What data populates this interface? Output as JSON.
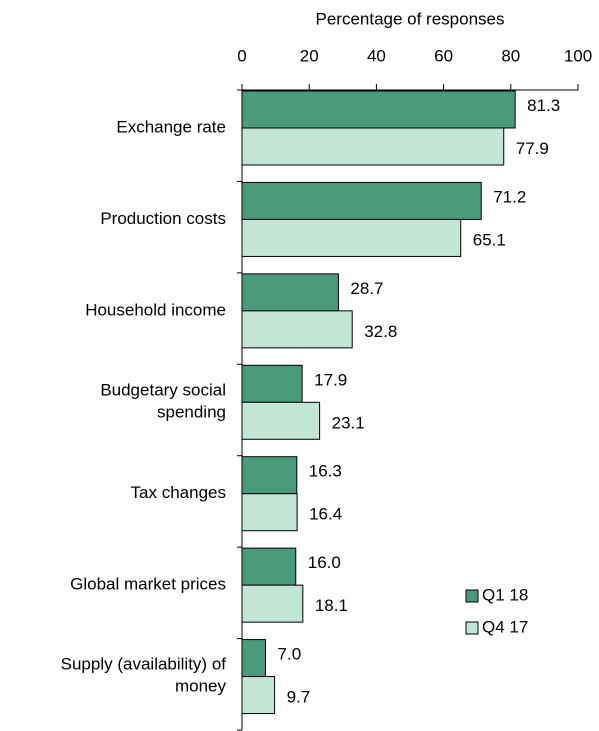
{
  "chart_data": {
    "type": "bar",
    "orientation": "horizontal",
    "x_label": "Percentage of responses",
    "categories": [
      "Exchange rate",
      "Production costs",
      "Household income",
      [
        "Budgetary social",
        "spending"
      ],
      "Tax changes",
      "Global market prices",
      [
        "Supply (availability) of",
        "money"
      ]
    ],
    "series": [
      {
        "name": "Q1 18",
        "color": "#4a9a7c",
        "values": [
          81.3,
          71.2,
          28.7,
          17.9,
          16.3,
          16.0,
          7.0
        ],
        "value_labels": [
          "81.3",
          "71.2",
          "28.7",
          "17.9",
          "16.3",
          "16.0",
          "7.0"
        ]
      },
      {
        "name": "Q4 17",
        "color": "#c2e6d6",
        "values": [
          77.9,
          65.1,
          32.8,
          23.1,
          16.4,
          18.1,
          9.7
        ],
        "value_labels": [
          "77.9",
          "65.1",
          "32.8",
          "23.1",
          "16.4",
          "18.1",
          "9.7"
        ]
      }
    ],
    "xlim": [
      0,
      100
    ],
    "xticks": [
      0,
      20,
      40,
      60,
      80,
      100
    ],
    "legend": "lower right"
  }
}
